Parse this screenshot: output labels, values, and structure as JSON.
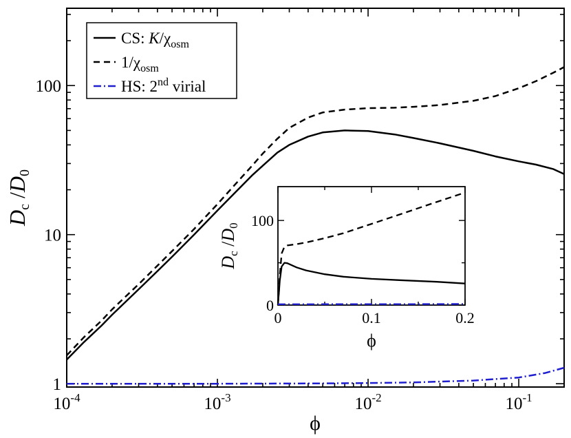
{
  "chart_data": [
    {
      "type": "line",
      "scale": {
        "x": "log",
        "y": "log"
      },
      "xlim": [
        0.0001,
        0.2
      ],
      "ylim": [
        0.95,
        330
      ],
      "xlabel": "ϕ",
      "ylabel": {
        "main": "D",
        "sub": "c",
        "slash": " /",
        "main2": "D",
        "sub2": "0"
      },
      "x_ticks": [
        {
          "x": 0.0001,
          "base": "10",
          "exp": "-4"
        },
        {
          "x": 0.001,
          "base": "10",
          "exp": "-3"
        },
        {
          "x": 0.01,
          "base": "10",
          "exp": "-2"
        },
        {
          "x": 0.1,
          "base": "10",
          "exp": "-1"
        }
      ],
      "y_ticks": [
        {
          "y": 1,
          "label": "1"
        },
        {
          "y": 10,
          "label": "10"
        },
        {
          "y": 100,
          "label": "100"
        }
      ],
      "legend": {
        "placement": "top-left",
        "entries": [
          {
            "key": "cs",
            "text": "CS: ",
            "text_italic": "K",
            "text_after": "/χ",
            "sub": "osm"
          },
          {
            "key": "inv",
            "text": "1/χ",
            "sub": "osm"
          },
          {
            "key": "hs",
            "text": "HS: 2",
            "sup": "nd",
            "text_after": " virial"
          }
        ]
      },
      "series": [
        {
          "key": "cs",
          "name": "CS: K/χosm",
          "style": "solid",
          "color": "#000000",
          "x": [
            0.0001,
            0.00013,
            0.00017,
            0.0002,
            0.0003,
            0.0004,
            0.0005,
            0.0007,
            0.001,
            0.0013,
            0.0017,
            0.002,
            0.0025,
            0.003,
            0.004,
            0.005,
            0.007,
            0.01,
            0.015,
            0.02,
            0.03,
            0.05,
            0.07,
            0.1,
            0.13,
            0.17,
            0.2
          ],
          "y": [
            1.45,
            1.9,
            2.45,
            2.9,
            4.3,
            5.7,
            7.1,
            10,
            14.5,
            19,
            25,
            29,
            35.5,
            40,
            45.5,
            48.5,
            50,
            49.5,
            47,
            44.5,
            41,
            36.5,
            33.5,
            31,
            29.5,
            27.5,
            25.5
          ]
        },
        {
          "key": "inv",
          "name": "1/χosm",
          "style": "dashed",
          "color": "#000000",
          "x": [
            0.0001,
            0.00013,
            0.00017,
            0.0002,
            0.0003,
            0.0004,
            0.0005,
            0.0007,
            0.001,
            0.0013,
            0.0017,
            0.002,
            0.0025,
            0.003,
            0.004,
            0.005,
            0.007,
            0.01,
            0.015,
            0.02,
            0.03,
            0.05,
            0.07,
            0.1,
            0.13,
            0.17,
            0.2
          ],
          "y": [
            1.55,
            2.05,
            2.65,
            3.15,
            4.65,
            6.2,
            7.75,
            10.9,
            16,
            21.5,
            29,
            35,
            44,
            52,
            61,
            66,
            69,
            70.5,
            71,
            72,
            74,
            79,
            85,
            96,
            107,
            122,
            133
          ]
        },
        {
          "key": "hs",
          "name": "HS: 2nd virial",
          "style": "dashdot",
          "color": "#1f1fd0",
          "x": [
            0.0001,
            0.001,
            0.005,
            0.01,
            0.02,
            0.05,
            0.1,
            0.15,
            0.2
          ],
          "y": [
            1.0,
            1.0,
            1.005,
            1.01,
            1.02,
            1.05,
            1.1,
            1.18,
            1.28
          ]
        }
      ]
    },
    {
      "type": "line",
      "inset": true,
      "scale": {
        "x": "linear",
        "y": "linear"
      },
      "xlim": [
        0,
        0.2
      ],
      "ylim": [
        0,
        140
      ],
      "xlabel": "ϕ",
      "ylabel": {
        "main": "D",
        "sub": "c",
        "slash": " /",
        "main2": "D",
        "sub2": "0"
      },
      "x_ticks": [
        {
          "x": 0,
          "label": "0"
        },
        {
          "x": 0.1,
          "label": "0.1"
        },
        {
          "x": 0.2,
          "label": "0.2"
        }
      ],
      "y_ticks": [
        {
          "y": 0,
          "label": "0"
        },
        {
          "y": 100,
          "label": "100"
        }
      ],
      "series": [
        {
          "key": "cs",
          "style": "solid",
          "color": "#000000",
          "x": [
            0,
            0.0005,
            0.001,
            0.002,
            0.004,
            0.007,
            0.01,
            0.02,
            0.03,
            0.05,
            0.07,
            0.1,
            0.13,
            0.17,
            0.2
          ],
          "y": [
            0,
            8,
            14.5,
            29,
            45.5,
            50,
            49.5,
            44.5,
            41,
            36.5,
            33.5,
            31,
            29.5,
            27.5,
            25.5
          ]
        },
        {
          "key": "inv",
          "style": "dashed",
          "color": "#000000",
          "x": [
            0,
            0.0005,
            0.001,
            0.002,
            0.004,
            0.007,
            0.01,
            0.02,
            0.03,
            0.05,
            0.07,
            0.1,
            0.13,
            0.17,
            0.2
          ],
          "y": [
            0,
            8,
            16,
            35,
            61,
            69,
            70.5,
            72,
            74,
            79,
            85,
            96,
            107,
            122,
            133
          ]
        },
        {
          "key": "hs",
          "style": "dashdot",
          "color": "#1f1fd0",
          "x": [
            0,
            0.05,
            0.1,
            0.15,
            0.2
          ],
          "y": [
            1.0,
            1.05,
            1.1,
            1.18,
            1.28
          ]
        }
      ]
    }
  ]
}
